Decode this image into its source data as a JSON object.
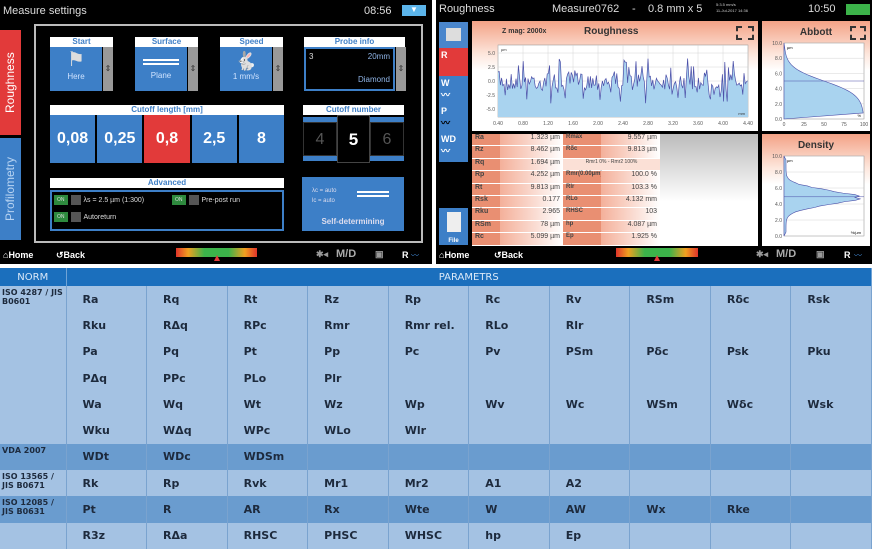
{
  "left_screen": {
    "title": "Measure settings",
    "time": "08:56",
    "menu_icon": "dropdown-arrow-icon",
    "tabs": [
      {
        "label": "Roughness",
        "active": true
      },
      {
        "label": "Profilometry",
        "active": false
      }
    ],
    "start": {
      "header": "Start",
      "value": "Here",
      "icon": "flag-arrow-icon"
    },
    "surface": {
      "header": "Surface",
      "value": "Plane",
      "icon": "plane-surface-icon"
    },
    "speed": {
      "header": "Speed",
      "value": "1 mm/s",
      "icon": "rabbit-icon"
    },
    "probe": {
      "header": "Probe info",
      "id": "3",
      "length": "20mm",
      "tip": "Diamond"
    },
    "cutoff_length": {
      "header": "Cutoff length [mm]",
      "options": [
        "0,08",
        "0,25",
        "0,8",
        "2,5",
        "8"
      ],
      "selected": "0,8"
    },
    "cutoff_number": {
      "header": "Cutoff number",
      "options": [
        "4",
        "5",
        "6"
      ],
      "selected": "5",
      "up": "<<",
      ">>": ">>"
    },
    "advanced": {
      "header": "Advanced",
      "toggles": [
        {
          "state": "ON",
          "label": "λs = 2.5 µm (1:300)"
        },
        {
          "state": "ON",
          "label": "Pre-post run"
        },
        {
          "state": "ON",
          "label": "Autoreturn"
        }
      ]
    },
    "self_determining": {
      "line1": "λc = auto",
      "line2": "lc = auto",
      "label": "Self-determining"
    },
    "bottom": {
      "home": "Home",
      "back": "Back",
      "md": "M/D",
      "r": "R"
    }
  },
  "right_screen": {
    "title": "Roughness",
    "measure": "Measure0762",
    "sep": "-",
    "cutoff": "0.8 mm x 5",
    "small_info": "5:3.5 mm/s",
    "date": "11-Jul-2017 14:36",
    "time": "10:50",
    "nav": [
      "R",
      "W",
      "P",
      "WD",
      "File"
    ],
    "roughness_chart": {
      "zmag": "Z mag: 2000x",
      "title": "Roughness",
      "yunit": "µm",
      "xunit": "mm",
      "yticks": [
        "5.0",
        "2.5",
        "0.0",
        "-2.5",
        "-5.0"
      ],
      "xticks": [
        "0.40",
        "0.80",
        "1.20",
        "1.60",
        "2.00",
        "2.40",
        "2.80",
        "3.20",
        "3.60",
        "4.00",
        "4.40"
      ]
    },
    "abbott": {
      "title": "Abbott",
      "yunit": "µm",
      "xunit": "%",
      "yticks": [
        "10.0",
        "8.0",
        "6.0",
        "4.0",
        "2.0",
        "0.0"
      ],
      "xticks": [
        "0",
        "25",
        "50",
        "75",
        "100"
      ]
    },
    "density": {
      "title": "Density",
      "yunit": "µm",
      "xunit": "%/µm",
      "yticks": [
        "10.0",
        "8.0",
        "6.0",
        "4.0",
        "2.0",
        "0.0"
      ]
    },
    "results_left": [
      [
        "Ra",
        "1.323 µm"
      ],
      [
        "Rz",
        "8.462 µm"
      ],
      [
        "Rq",
        "1.694 µm"
      ],
      [
        "Rp",
        "4.252 µm"
      ],
      [
        "Rt",
        "9.813 µm"
      ],
      [
        "Rsk",
        "0.177"
      ],
      [
        "Rku",
        "2.965"
      ],
      [
        "RSm",
        "78 µm"
      ],
      [
        "Rc",
        "5.099 µm"
      ]
    ],
    "results_right": [
      [
        "Rmax",
        "9.557 µm"
      ],
      [
        "Rδc",
        "9.813 µm"
      ],
      [
        "",
        "Rmr1 0% - Rmr2 100%"
      ],
      [
        "Rmr(0.00µm)",
        "100.0 %"
      ],
      [
        "Rlr",
        "103.3 %"
      ],
      [
        "RLo",
        "4.132 mm"
      ],
      [
        "RHSC",
        "103"
      ],
      [
        "hp",
        "4.087 µm"
      ],
      [
        "Ep",
        "1.925 %"
      ]
    ],
    "bottom": {
      "home": "Home",
      "back": "Back",
      "md": "M/D",
      "r": "R"
    }
  },
  "params_table": {
    "headers": [
      "NORM",
      "PARAMETRS"
    ],
    "rows": [
      {
        "norm": "ISO 4287 / JIS B0601",
        "cells": [
          "Ra",
          "Rq",
          "Rt",
          "Rz",
          "Rp",
          "Rc",
          "Rv",
          "RSm",
          "Rδc",
          "Rsk"
        ],
        "shade": "l"
      },
      {
        "norm": "",
        "cells": [
          "Rku",
          "RΔq",
          "RPc",
          "Rmr",
          "Rmr rel.",
          "RLo",
          "Rlr",
          "",
          "",
          ""
        ],
        "shade": "l"
      },
      {
        "norm": "",
        "cells": [
          "Pa",
          "Pq",
          "Pt",
          "Pp",
          "Pc",
          "Pv",
          "PSm",
          "Pδc",
          "Psk",
          "Pku"
        ],
        "shade": "l"
      },
      {
        "norm": "",
        "cells": [
          "PΔq",
          "PPc",
          "PLo",
          "Plr",
          "",
          "",
          "",
          "",
          "",
          ""
        ],
        "shade": "l"
      },
      {
        "norm": "",
        "cells": [
          "Wa",
          "Wq",
          "Wt",
          "Wz",
          "Wp",
          "Wv",
          "Wc",
          "WSm",
          "Wδc",
          "Wsk"
        ],
        "shade": "l"
      },
      {
        "norm": "",
        "cells": [
          "Wku",
          "WΔq",
          "WPc",
          "WLo",
          "Wlr",
          "",
          "",
          "",
          "",
          ""
        ],
        "shade": "l"
      },
      {
        "norm": "VDA 2007",
        "cells": [
          "WDt",
          "WDc",
          "WDSm",
          "",
          "",
          "",
          "",
          "",
          "",
          ""
        ],
        "shade": "d"
      },
      {
        "norm": "ISO 13565 / JIS B0671",
        "cells": [
          "Rk",
          "Rp",
          "Rvk",
          "Mr1",
          "Mr2",
          "A1",
          "A2",
          "",
          "",
          ""
        ],
        "shade": "l"
      },
      {
        "norm": "ISO 12085 / JIS B0631",
        "cells": [
          "Pt",
          "R",
          "AR",
          "Rx",
          "Wte",
          "W",
          "AW",
          "Wx",
          "Rke",
          ""
        ],
        "shade": "d"
      },
      {
        "norm": "",
        "cells": [
          "R3z",
          "RΔa",
          "RHSC",
          "PHSC",
          "WHSC",
          "hp",
          "Ep",
          "",
          "",
          ""
        ],
        "shade": "l"
      }
    ]
  },
  "colors": {
    "accent_red": "#e23a3a",
    "ui_blue": "#3d7fc7",
    "table_header": "#1b6fbd",
    "table_light": "#a4c2e3",
    "table_dark": "#6a9ccf"
  }
}
